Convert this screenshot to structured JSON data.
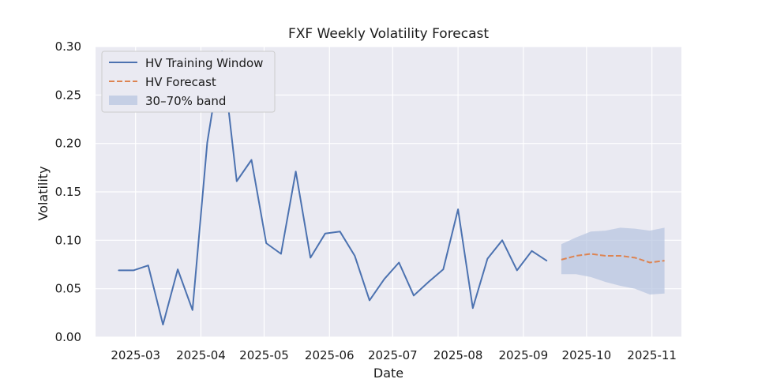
{
  "chart_data": {
    "type": "line",
    "title": "FXF Weekly Volatility Forecast",
    "xlabel": "Date",
    "ylabel": "Volatility",
    "xlim": [
      "2025-02-10",
      "2025-11-15"
    ],
    "ylim": [
      0,
      0.3
    ],
    "x_ticks": [
      "2025-03-01",
      "2025-04-01",
      "2025-05-01",
      "2025-06-01",
      "2025-07-01",
      "2025-08-01",
      "2025-09-01",
      "2025-10-01",
      "2025-11-01"
    ],
    "x_tick_labels": [
      "2025-03",
      "2025-04",
      "2025-05",
      "2025-06",
      "2025-07",
      "2025-08",
      "2025-09",
      "2025-10",
      "2025-11"
    ],
    "y_ticks": [
      0.0,
      0.05,
      0.1,
      0.15,
      0.2,
      0.25,
      0.3
    ],
    "y_tick_labels": [
      "0.00",
      "0.05",
      "0.10",
      "0.15",
      "0.20",
      "0.25",
      "0.30"
    ],
    "grid": true,
    "legend_position": "top-left",
    "colors": {
      "training": "#4c72b0",
      "forecast": "#dd8452",
      "band": "#b5c3df",
      "background": "#eaeaf2",
      "grid": "#ffffff"
    },
    "series": [
      {
        "name": "HV Training Window",
        "style": "solid",
        "points": [
          [
            "2025-02-21",
            0.069
          ],
          [
            "2025-02-28",
            0.069
          ],
          [
            "2025-03-07",
            0.074
          ],
          [
            "2025-03-14",
            0.013
          ],
          [
            "2025-03-21",
            0.07
          ],
          [
            "2025-03-28",
            0.028
          ],
          [
            "2025-04-04",
            0.201
          ],
          [
            "2025-04-11",
            0.295
          ],
          [
            "2025-04-18",
            0.161
          ],
          [
            "2025-04-25",
            0.183
          ],
          [
            "2025-05-02",
            0.097
          ],
          [
            "2025-05-09",
            0.086
          ],
          [
            "2025-05-16",
            0.171
          ],
          [
            "2025-05-23",
            0.082
          ],
          [
            "2025-05-30",
            0.107
          ],
          [
            "2025-06-06",
            0.109
          ],
          [
            "2025-06-13",
            0.084
          ],
          [
            "2025-06-20",
            0.038
          ],
          [
            "2025-06-27",
            0.06
          ],
          [
            "2025-07-04",
            0.077
          ],
          [
            "2025-07-11",
            0.043
          ],
          [
            "2025-07-18",
            0.057
          ],
          [
            "2025-07-25",
            0.07
          ],
          [
            "2025-08-01",
            0.132
          ],
          [
            "2025-08-08",
            0.03
          ],
          [
            "2025-08-15",
            0.081
          ],
          [
            "2025-08-22",
            0.1
          ],
          [
            "2025-08-29",
            0.069
          ],
          [
            "2025-09-05",
            0.089
          ],
          [
            "2025-09-12",
            0.079
          ]
        ]
      },
      {
        "name": "HV Forecast",
        "style": "dashed",
        "points": [
          [
            "2025-09-19",
            0.08
          ],
          [
            "2025-09-26",
            0.084
          ],
          [
            "2025-10-03",
            0.086
          ],
          [
            "2025-10-10",
            0.084
          ],
          [
            "2025-10-17",
            0.084
          ],
          [
            "2025-10-24",
            0.082
          ],
          [
            "2025-10-31",
            0.077
          ],
          [
            "2025-11-07",
            0.079
          ]
        ]
      }
    ],
    "band": {
      "name": "30–70% band",
      "x": [
        "2025-09-19",
        "2025-09-26",
        "2025-10-03",
        "2025-10-10",
        "2025-10-17",
        "2025-10-24",
        "2025-10-31",
        "2025-11-07"
      ],
      "lower": [
        0.065,
        0.065,
        0.062,
        0.057,
        0.053,
        0.05,
        0.044,
        0.045
      ],
      "upper": [
        0.096,
        0.103,
        0.109,
        0.11,
        0.113,
        0.112,
        0.11,
        0.113
      ]
    }
  }
}
